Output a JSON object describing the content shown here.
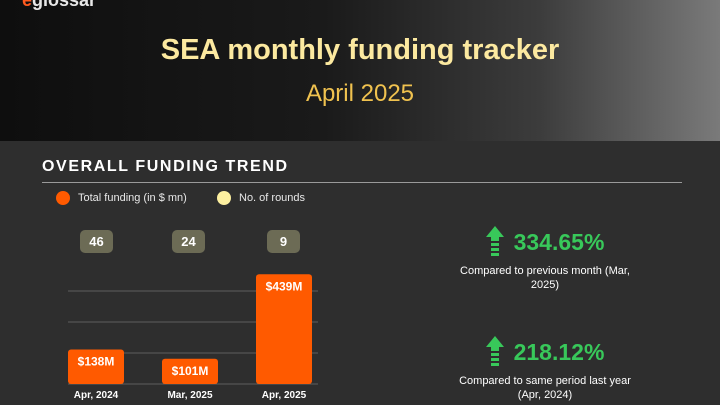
{
  "brand": {
    "prefix": "e",
    "rest": "glossar"
  },
  "hero": {
    "title": "SEA monthly funding tracker",
    "subtitle": "April 2025"
  },
  "section": {
    "title": "OVERALL FUNDING TREND"
  },
  "legend": [
    {
      "label": "Total funding (in $ mn)",
      "color": "#ff5a00"
    },
    {
      "label": "No. of rounds",
      "color": "#fdf0a0"
    }
  ],
  "chart_data": {
    "type": "bar",
    "categories": [
      "Apr, 2024",
      "Mar, 2025",
      "Apr, 2025"
    ],
    "series": [
      {
        "name": "Total funding (in $ mn)",
        "values": [
          138,
          101,
          439
        ],
        "labels": [
          "$138M",
          "$101M",
          "$439M"
        ],
        "color": "#ff5a00"
      },
      {
        "name": "No. of rounds",
        "values": [
          46,
          24,
          9
        ],
        "color": "#6c6b55"
      }
    ],
    "ylim": [
      0,
      480
    ],
    "grid": true
  },
  "stats": [
    {
      "value": "334.65%",
      "description": "Compared to previous month (Mar, 2025)",
      "direction": "up",
      "color": "#38c85a",
      "icon": "up-arrow-icon"
    },
    {
      "value": "218.12%",
      "description": "Compared to same period last year (Apr, 2024)",
      "direction": "up",
      "color": "#38c85a",
      "icon": "up-arrow-icon"
    }
  ]
}
